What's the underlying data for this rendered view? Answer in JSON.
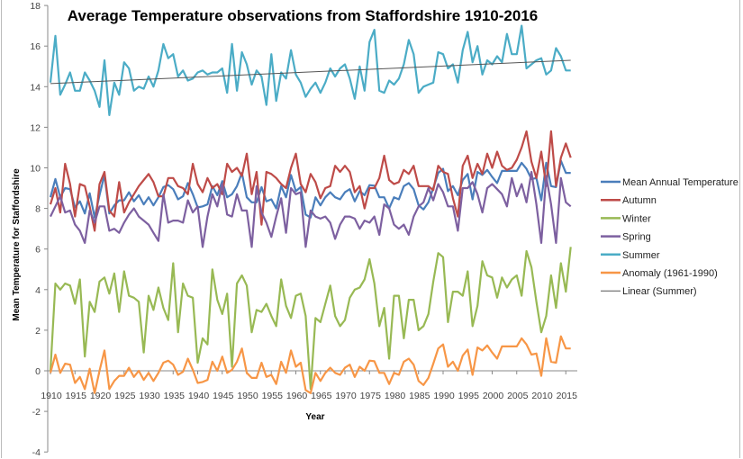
{
  "chart_data": {
    "type": "line",
    "title": "Average Temperature observations from Staffordshire 1910-2016",
    "xlabel": "Year",
    "ylabel": "Mean Temperature for Staffordshire",
    "xlim": [
      1910,
      2016
    ],
    "ylim": [
      -4,
      18
    ],
    "y_ticks": [
      18,
      16,
      14,
      12,
      10,
      8,
      6,
      4,
      2,
      0,
      -2,
      -4
    ],
    "x_ticks": [
      1910,
      1915,
      1920,
      1925,
      1930,
      1935,
      1940,
      1945,
      1950,
      1955,
      1960,
      1965,
      1970,
      1975,
      1980,
      1985,
      1990,
      1995,
      2000,
      2005,
      2010,
      2015
    ],
    "grid": false,
    "legend_position": "right",
    "x_start": 1910,
    "series": [
      {
        "name": "Mean Annual Temperature",
        "color": "#4A7EBB",
        "values": [
          8.55,
          9.45,
          8.55,
          9.0,
          8.95,
          8.05,
          8.35,
          7.75,
          8.75,
          7.55,
          8.65,
          9.65,
          7.75,
          8.15,
          8.4,
          8.4,
          8.8,
          8.35,
          8.65,
          8.2,
          8.55,
          8.15,
          8.55,
          9.05,
          9.15,
          8.95,
          8.45,
          8.6,
          9.25,
          8.7,
          8.05,
          8.1,
          8.2,
          9.1,
          8.65,
          9.35,
          8.55,
          8.7,
          9.1,
          9.75,
          8.55,
          8.3,
          8.3,
          9.05,
          8.35,
          8.45,
          8.0,
          9.1,
          8.55,
          9.65,
          8.85,
          9.05,
          7.7,
          7.55,
          8.55,
          8.15,
          8.55,
          8.8,
          8.55,
          8.45,
          8.8,
          8.95,
          8.35,
          8.85,
          8.65,
          9.15,
          9.12,
          8.55,
          8.55,
          8.0,
          8.55,
          8.45,
          9.1,
          9.25,
          8.95,
          8.15,
          7.95,
          8.3,
          9.0,
          9.75,
          9.95,
          8.85,
          9.1,
          8.65,
          9.4,
          9.7,
          8.45,
          9.8,
          9.65,
          9.9,
          9.55,
          9.25,
          9.85,
          9.85,
          9.85,
          9.85,
          10.25,
          9.95,
          9.45,
          9.5,
          8.4,
          10.25,
          9.1,
          9.05,
          10.35,
          9.75,
          9.75
        ]
      },
      {
        "name": "Autumn",
        "color": "#BE4B48",
        "values": [
          8.2,
          9.0,
          7.8,
          10.2,
          9.2,
          7.6,
          9.2,
          9.1,
          8.1,
          6.9,
          9.2,
          9.8,
          7.9,
          7.6,
          9.3,
          7.8,
          8.3,
          8.7,
          9.1,
          9.4,
          9.7,
          9.3,
          8.6,
          8.6,
          9.5,
          9.5,
          9.1,
          9.0,
          8.7,
          10.2,
          9.2,
          8.8,
          9.5,
          9.0,
          9.2,
          8.7,
          10.2,
          9.8,
          10.0,
          9.6,
          10.7,
          8.7,
          9.8,
          7.2,
          9.8,
          9.7,
          9.5,
          9.2,
          9.0,
          10.0,
          10.7,
          9.2,
          8.8,
          9.7,
          9.3,
          8.5,
          9.0,
          9.1,
          10.1,
          9.8,
          10.1,
          9.8,
          8.8,
          9.1,
          8.0,
          9.0,
          9.0,
          9.5,
          10.6,
          9.4,
          9.2,
          9.3,
          9.9,
          9.7,
          10.1,
          9.1,
          9.1,
          9.1,
          8.9,
          10.1,
          9.8,
          9.7,
          8.5,
          7.6,
          10.1,
          10.6,
          9.5,
          10.2,
          9.7,
          10.7,
          10.0,
          10.8,
          10.1,
          9.9,
          10.0,
          10.4,
          11.0,
          11.8,
          10.3,
          9.5,
          10.8,
          9.1,
          11.8,
          9.1,
          10.5,
          11.2,
          10.5
        ]
      },
      {
        "name": "Winter",
        "color": "#98B954",
        "values": [
          0.0,
          4.3,
          4.0,
          4.3,
          4.2,
          3.3,
          4.5,
          0.7,
          3.4,
          2.9,
          4.4,
          4.6,
          3.8,
          4.8,
          2.9,
          4.9,
          3.7,
          3.6,
          3.4,
          0.9,
          3.7,
          3.0,
          4.1,
          3.1,
          2.5,
          5.3,
          1.9,
          4.3,
          3.7,
          3.6,
          0.4,
          1.6,
          1.3,
          5.0,
          3.5,
          2.8,
          3.8,
          0.2,
          4.3,
          4.7,
          4.2,
          1.9,
          3.0,
          2.9,
          3.3,
          2.7,
          2.2,
          4.5,
          3.2,
          2.6,
          3.7,
          3.8,
          2.7,
          -0.9,
          2.6,
          2.4,
          3.3,
          4.2,
          2.7,
          2.2,
          2.5,
          3.6,
          4.0,
          4.1,
          4.5,
          5.5,
          4.3,
          2.2,
          3.1,
          0.6,
          3.7,
          3.7,
          1.6,
          3.5,
          3.5,
          2.0,
          2.2,
          2.8,
          4.4,
          5.8,
          5.6,
          2.4,
          3.9,
          3.9,
          3.7,
          4.9,
          2.2,
          3.2,
          5.4,
          4.7,
          4.6,
          3.6,
          4.6,
          4.1,
          4.5,
          4.7,
          3.7,
          5.9,
          5.1,
          3.4,
          1.9,
          2.7,
          4.7,
          3.1,
          5.3,
          3.9,
          6.1
        ]
      },
      {
        "name": "Spring",
        "color": "#7D60A0",
        "values": [
          7.6,
          8.1,
          8.6,
          7.8,
          7.9,
          7.2,
          6.9,
          6.3,
          7.9,
          7.3,
          8.1,
          8.1,
          6.9,
          7.0,
          6.8,
          7.3,
          7.7,
          8.0,
          7.6,
          7.4,
          7.2,
          6.8,
          6.4,
          8.7,
          7.3,
          7.4,
          7.4,
          7.3,
          8.4,
          7.8,
          8.1,
          6.1,
          7.6,
          8.7,
          8.1,
          9.2,
          7.7,
          7.6,
          8.7,
          7.9,
          7.9,
          6.1,
          9.1,
          7.8,
          7.3,
          6.6,
          7.6,
          8.5,
          6.8,
          9.0,
          8.7,
          8.8,
          6.1,
          7.9,
          7.6,
          7.5,
          7.6,
          7.3,
          6.5,
          7.2,
          7.6,
          7.6,
          7.5,
          7.0,
          7.4,
          7.3,
          7.6,
          6.7,
          8.2,
          8.0,
          7.2,
          7.0,
          7.2,
          6.7,
          7.6,
          8.1,
          8.3,
          9.0,
          8.4,
          9.2,
          8.8,
          8.1,
          8.1,
          6.9,
          9.0,
          9.0,
          9.3,
          8.7,
          7.8,
          9.0,
          9.2,
          8.95,
          8.7,
          8.1,
          9.5,
          8.6,
          9.2,
          8.3,
          9.8,
          8.2,
          6.3,
          9.6,
          8.2,
          6.3,
          9.5,
          8.3,
          8.1
        ]
      },
      {
        "name": "Summer",
        "color": "#4BACC6",
        "values": [
          14.2,
          16.5,
          13.6,
          14.1,
          14.7,
          13.8,
          13.8,
          14.7,
          14.3,
          13.8,
          13.0,
          15.3,
          12.6,
          14.2,
          13.6,
          15.2,
          14.9,
          13.8,
          14.0,
          13.9,
          14.5,
          14.0,
          14.8,
          16.1,
          15.4,
          15.6,
          14.5,
          14.8,
          14.3,
          14.4,
          14.7,
          14.8,
          14.6,
          14.7,
          14.7,
          14.9,
          13.7,
          16.1,
          13.8,
          15.7,
          15.1,
          14.1,
          14.8,
          14.5,
          13.1,
          15.6,
          13.3,
          14.7,
          14.4,
          15.8,
          14.6,
          14.2,
          13.5,
          13.9,
          14.2,
          13.7,
          14.2,
          14.9,
          14.5,
          14.9,
          15.1,
          14.4,
          13.4,
          15.0,
          13.8,
          16.2,
          16.8,
          13.8,
          13.7,
          14.3,
          14.1,
          14.4,
          15.1,
          16.3,
          15.6,
          13.7,
          14.0,
          14.1,
          14.2,
          15.7,
          15.6,
          14.9,
          15.1,
          14.2,
          15.8,
          16.7,
          15.2,
          16.0,
          14.6,
          15.3,
          15.1,
          15.5,
          15.2,
          16.6,
          15.6,
          15.6,
          17.0,
          14.9,
          15.1,
          15.3,
          15.4,
          14.6,
          14.8,
          15.9,
          15.5,
          14.8,
          14.8
        ]
      },
      {
        "name": "Anomaly (1961-1990)",
        "color": "#F79646",
        "values": [
          -0.1,
          0.8,
          -0.1,
          0.35,
          0.3,
          -0.6,
          -0.3,
          -0.9,
          0.1,
          -1.1,
          0.0,
          1.0,
          -0.9,
          -0.5,
          -0.25,
          -0.25,
          0.15,
          -0.3,
          0.0,
          -0.45,
          -0.1,
          -0.5,
          -0.1,
          0.4,
          0.5,
          0.3,
          -0.2,
          -0.05,
          0.6,
          0.05,
          -0.6,
          -0.55,
          -0.45,
          0.45,
          0.0,
          0.7,
          -0.1,
          0.05,
          0.45,
          1.1,
          -0.1,
          -0.35,
          -0.35,
          0.4,
          -0.3,
          -0.2,
          -0.65,
          0.45,
          -0.1,
          1.0,
          0.2,
          0.4,
          -0.95,
          -1.1,
          -0.1,
          -0.5,
          -0.1,
          0.15,
          -0.1,
          -0.2,
          0.15,
          0.3,
          -0.3,
          0.2,
          0.0,
          0.5,
          0.47,
          -0.1,
          -0.1,
          -0.65,
          -0.1,
          -0.2,
          0.45,
          0.6,
          0.3,
          -0.5,
          -0.7,
          -0.35,
          0.35,
          1.1,
          1.3,
          0.2,
          0.45,
          0.0,
          0.75,
          1.05,
          -0.2,
          1.15,
          1.0,
          1.25,
          0.9,
          0.6,
          1.2,
          1.2,
          1.2,
          1.2,
          1.6,
          1.3,
          0.8,
          0.85,
          -0.25,
          1.6,
          0.45,
          0.4,
          1.7,
          1.1,
          1.1
        ]
      }
    ],
    "trendline": {
      "name": "Linear (Summer)",
      "color": "#555555",
      "start": [
        1910,
        14.15
      ],
      "end": [
        2016,
        15.3
      ]
    }
  }
}
